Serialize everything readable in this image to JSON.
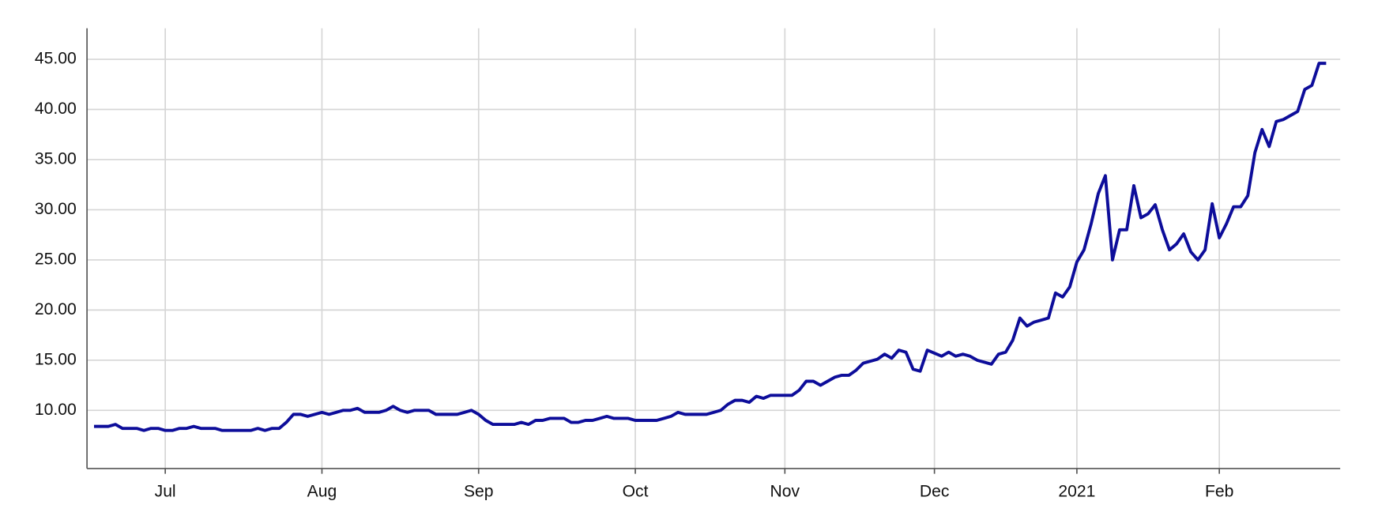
{
  "chart_data": {
    "type": "line",
    "categories": [
      null,
      null,
      null,
      null,
      null,
      null,
      null,
      null,
      null,
      null,
      "Jul",
      null,
      null,
      null,
      null,
      null,
      null,
      null,
      null,
      null,
      null,
      null,
      null,
      null,
      null,
      null,
      null,
      null,
      null,
      null,
      null,
      null,
      "Aug",
      null,
      null,
      null,
      null,
      null,
      null,
      null,
      null,
      null,
      null,
      null,
      null,
      null,
      null,
      null,
      null,
      null,
      null,
      null,
      null,
      null,
      "Sep",
      null,
      null,
      null,
      null,
      null,
      null,
      null,
      null,
      null,
      null,
      null,
      null,
      null,
      null,
      null,
      null,
      null,
      null,
      null,
      null,
      null,
      "Oct",
      null,
      null,
      null,
      null,
      null,
      null,
      null,
      null,
      null,
      null,
      null,
      null,
      null,
      null,
      null,
      null,
      null,
      null,
      null,
      null,
      "Nov",
      null,
      null,
      null,
      null,
      null,
      null,
      null,
      null,
      null,
      null,
      null,
      null,
      null,
      null,
      null,
      null,
      null,
      null,
      null,
      null,
      "Dec",
      null,
      null,
      null,
      null,
      null,
      null,
      null,
      null,
      null,
      null,
      null,
      null,
      null,
      null,
      null,
      null,
      null,
      null,
      null,
      "2021",
      null,
      null,
      null,
      null,
      null,
      null,
      null,
      null,
      null,
      null,
      null,
      null,
      null,
      null,
      null,
      null,
      null,
      null,
      null,
      "Feb",
      null,
      null,
      null,
      null,
      null,
      null,
      null,
      null,
      null,
      null,
      null,
      null,
      null,
      null,
      null
    ],
    "values": [
      8.4,
      8.4,
      8.4,
      8.6,
      8.2,
      8.2,
      8.2,
      8.0,
      8.2,
      8.2,
      8.0,
      8.0,
      8.2,
      8.2,
      8.4,
      8.2,
      8.2,
      8.2,
      8.0,
      8.0,
      8.0,
      8.0,
      8.0,
      8.2,
      8.0,
      8.2,
      8.2,
      8.8,
      9.6,
      9.6,
      9.4,
      9.6,
      9.8,
      9.6,
      9.8,
      10.0,
      10.0,
      10.2,
      9.8,
      9.8,
      9.8,
      10.0,
      10.4,
      10.0,
      9.8,
      10.0,
      10.0,
      10.0,
      9.6,
      9.6,
      9.6,
      9.6,
      9.8,
      10.0,
      9.6,
      9.0,
      8.6,
      8.6,
      8.6,
      8.6,
      8.8,
      8.6,
      9.0,
      9.0,
      9.2,
      9.2,
      9.2,
      8.8,
      8.8,
      9.0,
      9.0,
      9.2,
      9.4,
      9.2,
      9.2,
      9.2,
      9.0,
      9.0,
      9.0,
      9.0,
      9.2,
      9.4,
      9.8,
      9.6,
      9.6,
      9.6,
      9.6,
      9.8,
      10.0,
      10.6,
      11.0,
      11.0,
      10.8,
      11.4,
      11.2,
      11.5,
      11.5,
      11.5,
      11.5,
      12.0,
      12.9,
      12.9,
      12.5,
      12.9,
      13.3,
      13.5,
      13.5,
      14.0,
      14.7,
      14.9,
      15.1,
      15.6,
      15.2,
      16.0,
      15.8,
      14.1,
      13.9,
      16.0,
      15.7,
      15.4,
      15.8,
      15.4,
      15.6,
      15.4,
      15.0,
      14.8,
      14.6,
      15.6,
      15.8,
      17.0,
      19.2,
      18.4,
      18.8,
      19.0,
      19.2,
      21.7,
      21.3,
      22.3,
      24.8,
      26.0,
      28.6,
      31.6,
      33.4,
      25.0,
      28.0,
      28.0,
      32.4,
      29.2,
      29.6,
      30.5,
      28.0,
      26.0,
      26.6,
      27.6,
      25.8,
      25.0,
      26.0,
      30.6,
      27.2,
      28.6,
      30.3,
      30.3,
      31.4,
      35.7,
      38.0,
      36.3,
      38.8,
      39.0,
      39.4,
      39.8,
      42.0,
      42.4,
      44.6,
      44.6
    ],
    "color": "#0d0d9a",
    "ylim": [
      4.2,
      48.1
    ],
    "yticks": [
      {
        "value": 10,
        "label": "10.00"
      },
      {
        "value": 15,
        "label": "15.00"
      },
      {
        "value": 20,
        "label": "20.00"
      },
      {
        "value": 25,
        "label": "25.00"
      },
      {
        "value": 30,
        "label": "30.00"
      },
      {
        "value": 35,
        "label": "35.00"
      },
      {
        "value": 40,
        "label": "40.00"
      },
      {
        "value": 45,
        "label": "45.00"
      }
    ],
    "grid": true
  }
}
